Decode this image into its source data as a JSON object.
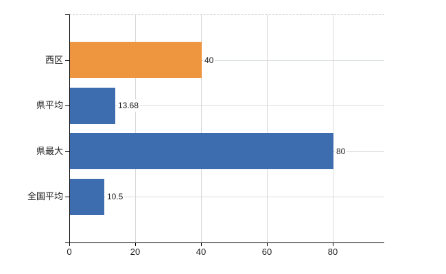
{
  "chart_data": {
    "type": "bar",
    "orientation": "horizontal",
    "title": "",
    "categories": [
      "西区",
      "県平均",
      "県最大",
      "全国平均"
    ],
    "values": [
      40,
      13.68,
      80,
      10.5
    ],
    "value_labels": [
      "40",
      "13.68",
      "80",
      "10.5"
    ],
    "bar_colors": [
      "#EE9540",
      "#3D6DAE",
      "#3D6DAE",
      "#3D6DAE"
    ],
    "x_ticks": [
      0,
      20,
      40,
      60,
      80
    ],
    "x_tick_labels": [
      "0",
      "20",
      "40",
      "60",
      "80"
    ],
    "xlim": [
      0,
      95.6
    ],
    "grid": true,
    "legend": false
  },
  "style": {
    "background": "#FFFFFF",
    "axis_color": "#000000",
    "text_color": "#1A1A1A",
    "vgrid_color": "#D9D9D9",
    "hgrid_color": "#D6DDD6",
    "top_border_color": "#CCCCCC",
    "value_label_bg": "#FFFFFF"
  }
}
